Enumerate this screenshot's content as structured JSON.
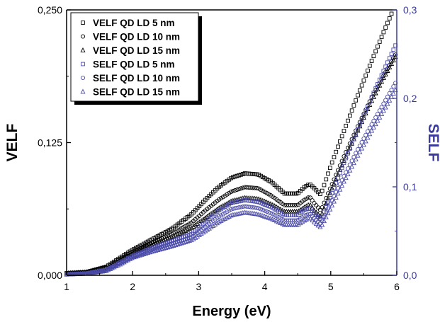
{
  "chart_data": {
    "type": "scatter",
    "title": "",
    "xlabel": "Energy (eV)",
    "ylabel_left": "VELF",
    "ylabel_right": "SELF",
    "xlim": [
      1,
      6
    ],
    "ylim_left": [
      0,
      0.25
    ],
    "ylim_right": [
      0,
      0.3
    ],
    "x_ticks": [
      1,
      2,
      3,
      4,
      5,
      6
    ],
    "x_tick_labels": [
      "1",
      "2",
      "3",
      "4",
      "5",
      "6"
    ],
    "y_left_ticks": [
      0,
      0.125,
      0.25
    ],
    "y_left_tick_labels": [
      "0,000",
      "0,125",
      "0,250"
    ],
    "y_right_ticks": [
      0,
      0.1,
      0.2,
      0.3
    ],
    "y_right_tick_labels": [
      "0,0",
      "0,1",
      "0,2",
      "0,3"
    ],
    "grid": false,
    "legend_position": "top-left",
    "colors": {
      "velf": "#000000",
      "self": "#4a4aa8",
      "right_axis": "#3a3a9a"
    },
    "series": [
      {
        "name": "VELF QD LD 5 nm",
        "axis": "left",
        "marker": "square",
        "color": "#000000",
        "x": [
          1.0,
          1.3,
          1.6,
          1.8,
          2.0,
          2.3,
          2.6,
          2.9,
          3.1,
          3.3,
          3.5,
          3.7,
          3.9,
          4.1,
          4.3,
          4.5,
          4.6,
          4.68,
          4.75,
          4.85,
          5.0,
          5.2,
          5.4,
          5.6,
          5.8,
          6.0
        ],
        "y": [
          0.002,
          0.003,
          0.008,
          0.016,
          0.024,
          0.034,
          0.044,
          0.058,
          0.071,
          0.083,
          0.092,
          0.096,
          0.095,
          0.088,
          0.077,
          0.077,
          0.083,
          0.086,
          0.082,
          0.076,
          0.103,
          0.136,
          0.168,
          0.199,
          0.229,
          0.258
        ]
      },
      {
        "name": "VELF QD LD 10 nm",
        "axis": "left",
        "marker": "circle",
        "color": "#000000",
        "x": [
          1.0,
          1.3,
          1.6,
          1.8,
          2.0,
          2.3,
          2.6,
          2.9,
          3.1,
          3.3,
          3.5,
          3.7,
          3.9,
          4.1,
          4.3,
          4.5,
          4.6,
          4.68,
          4.75,
          4.85,
          5.0,
          5.2,
          5.4,
          5.6,
          5.8,
          6.0
        ],
        "y": [
          0.002,
          0.003,
          0.007,
          0.015,
          0.022,
          0.031,
          0.039,
          0.05,
          0.061,
          0.071,
          0.079,
          0.083,
          0.082,
          0.075,
          0.066,
          0.066,
          0.071,
          0.074,
          0.068,
          0.061,
          0.083,
          0.112,
          0.139,
          0.165,
          0.188,
          0.21
        ]
      },
      {
        "name": "VELF QD LD 15 nm",
        "axis": "left",
        "marker": "triangle",
        "color": "#000000",
        "x": [
          1.0,
          1.3,
          1.6,
          1.8,
          2.0,
          2.3,
          2.6,
          2.9,
          3.1,
          3.3,
          3.5,
          3.7,
          3.9,
          4.1,
          4.3,
          4.5,
          4.6,
          4.68,
          4.75,
          4.85,
          5.0,
          5.2,
          5.4,
          5.6,
          5.8,
          6.0
        ],
        "y": [
          0.002,
          0.003,
          0.006,
          0.014,
          0.021,
          0.029,
          0.036,
          0.045,
          0.054,
          0.063,
          0.07,
          0.073,
          0.072,
          0.067,
          0.06,
          0.06,
          0.064,
          0.067,
          0.061,
          0.055,
          0.079,
          0.108,
          0.135,
          0.162,
          0.186,
          0.208
        ]
      },
      {
        "name": "SELF QD LD 5 nm",
        "axis": "right",
        "marker": "square",
        "color": "#4a4aa8",
        "x": [
          1.0,
          1.3,
          1.6,
          1.8,
          2.0,
          2.3,
          2.6,
          2.9,
          3.1,
          3.3,
          3.5,
          3.7,
          3.9,
          4.1,
          4.3,
          4.5,
          4.6,
          4.68,
          4.75,
          4.85,
          5.0,
          5.2,
          5.4,
          5.6,
          5.8,
          6.0
        ],
        "y": [
          0.001,
          0.002,
          0.006,
          0.014,
          0.022,
          0.031,
          0.039,
          0.047,
          0.06,
          0.073,
          0.082,
          0.085,
          0.083,
          0.077,
          0.068,
          0.068,
          0.074,
          0.076,
          0.07,
          0.063,
          0.089,
          0.127,
          0.163,
          0.198,
          0.231,
          0.263
        ]
      },
      {
        "name": "SELF QD LD 10 nm",
        "axis": "right",
        "marker": "circle",
        "color": "#4a4aa8",
        "x": [
          1.0,
          1.3,
          1.6,
          1.8,
          2.0,
          2.3,
          2.6,
          2.9,
          3.1,
          3.3,
          3.5,
          3.7,
          3.9,
          4.1,
          4.3,
          4.5,
          4.6,
          4.68,
          4.75,
          4.85,
          5.0,
          5.2,
          5.4,
          5.6,
          5.8,
          6.0
        ],
        "y": [
          0.001,
          0.002,
          0.006,
          0.013,
          0.021,
          0.029,
          0.036,
          0.043,
          0.055,
          0.066,
          0.075,
          0.078,
          0.076,
          0.07,
          0.062,
          0.062,
          0.067,
          0.07,
          0.065,
          0.058,
          0.082,
          0.112,
          0.141,
          0.168,
          0.194,
          0.22
        ]
      },
      {
        "name": "SELF QD LD 15 nm",
        "axis": "right",
        "marker": "triangle",
        "color": "#4a4aa8",
        "x": [
          1.0,
          1.3,
          1.6,
          1.8,
          2.0,
          2.3,
          2.6,
          2.9,
          3.1,
          3.3,
          3.5,
          3.7,
          3.9,
          4.1,
          4.3,
          4.5,
          4.6,
          4.68,
          4.75,
          4.85,
          5.0,
          5.2,
          5.4,
          5.6,
          5.8,
          6.0
        ],
        "y": [
          0.001,
          0.002,
          0.005,
          0.012,
          0.02,
          0.027,
          0.033,
          0.04,
          0.05,
          0.06,
          0.068,
          0.071,
          0.069,
          0.064,
          0.057,
          0.057,
          0.062,
          0.065,
          0.06,
          0.054,
          0.076,
          0.106,
          0.134,
          0.161,
          0.186,
          0.212
        ]
      }
    ]
  }
}
